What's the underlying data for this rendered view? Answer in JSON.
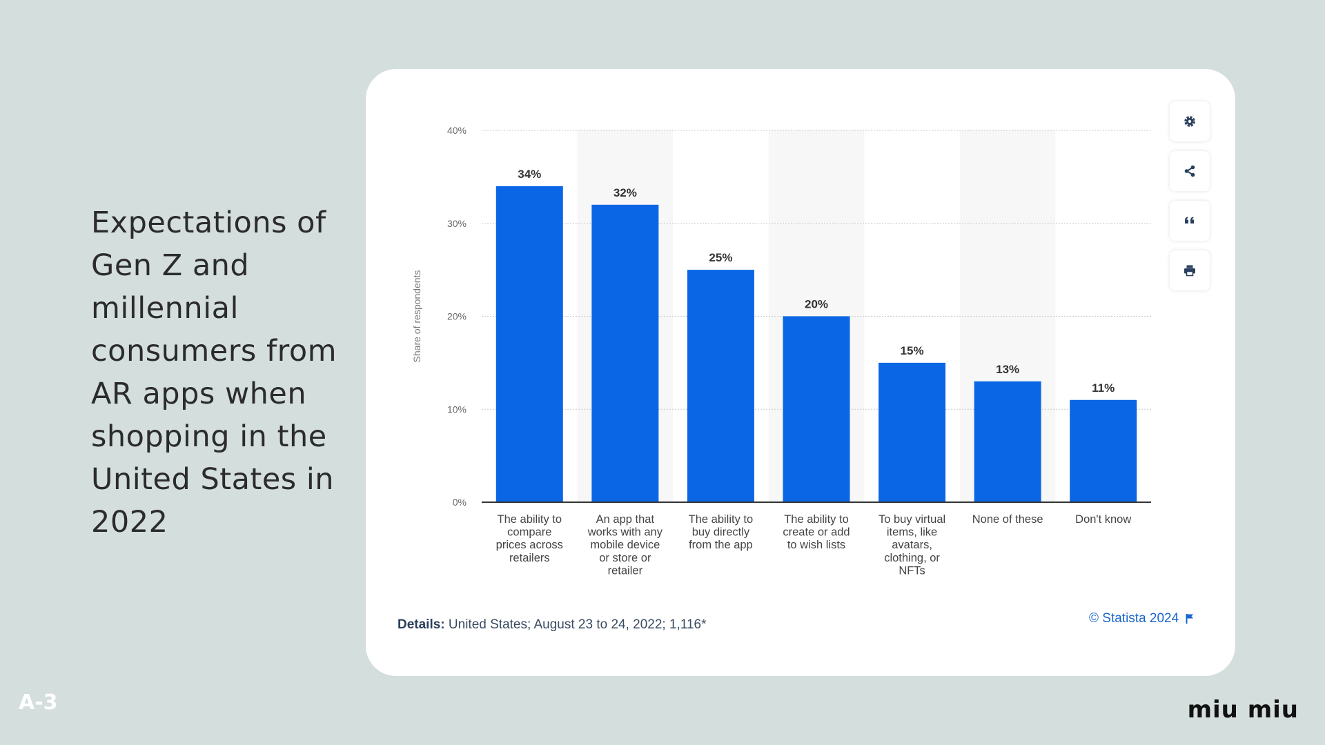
{
  "slide": {
    "title": "Expectations of Gen Z and millennial consumers from AR apps when shopping in the United States in 2022",
    "slide_number": "A-3",
    "brand": "miu miu"
  },
  "toolbar": {
    "icons": [
      "gear-icon",
      "share-icon",
      "quote-icon",
      "print-icon"
    ]
  },
  "footer": {
    "details_label": "Details:",
    "details_text": "United States; August 23 to 24, 2022; 1,116*",
    "credit": "© Statista 2024"
  },
  "colors": {
    "bar": "#0a66e4",
    "band": "#f7f7f7",
    "gridline": "#c8c8c8",
    "axis": "#333333"
  },
  "chart_data": {
    "type": "bar",
    "categories": [
      "The ability to compare prices across retailers",
      "An app that works with any mobile device or store or retailer",
      "The ability to buy directly from the app",
      "The ability to create or add to wish lists",
      "To buy virtual items, like avatars, clothing, or NFTs",
      "None of these",
      "Don't know"
    ],
    "category_lines": [
      [
        "The ability to",
        "compare",
        "prices across",
        "retailers"
      ],
      [
        "An app that",
        "works with any",
        "mobile device",
        "or store or",
        "retailer"
      ],
      [
        "The ability to",
        "buy directly",
        "from the app"
      ],
      [
        "The ability to",
        "create or add",
        "to wish lists"
      ],
      [
        "To buy virtual",
        "items, like",
        "avatars,",
        "clothing, or",
        "NFTs"
      ],
      [
        "None of these"
      ],
      [
        "Don't know"
      ]
    ],
    "values": [
      34,
      32,
      25,
      20,
      15,
      13,
      11
    ],
    "data_labels": [
      "34%",
      "32%",
      "25%",
      "20%",
      "15%",
      "13%",
      "11%"
    ],
    "ylabel": "Share of respondents",
    "ylim": [
      0,
      40
    ],
    "yticks": [
      0,
      10,
      20,
      30,
      40
    ],
    "ytick_labels": [
      "0%",
      "10%",
      "20%",
      "30%",
      "40%"
    ],
    "grid": true
  }
}
